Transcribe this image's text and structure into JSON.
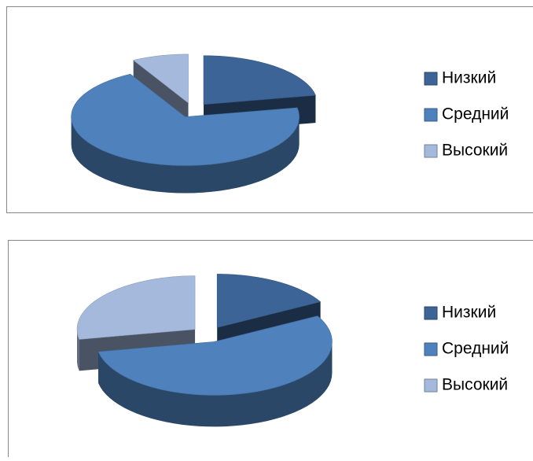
{
  "chart_data": [
    {
      "type": "pie",
      "categories": [
        "Низкий",
        "Средний",
        "Высокий"
      ],
      "values": [
        22,
        70,
        8
      ],
      "colors": [
        "#3c6496",
        "#4f81bd",
        "#a5b9dc"
      ],
      "legend": "right",
      "exploded": true
    },
    {
      "type": "pie",
      "categories": [
        "Низкий",
        "Средний",
        "Высокий"
      ],
      "values": [
        17,
        55,
        28
      ],
      "colors": [
        "#3c6496",
        "#4f81bd",
        "#a5b9dc"
      ],
      "legend": "right",
      "exploded": true
    }
  ]
}
